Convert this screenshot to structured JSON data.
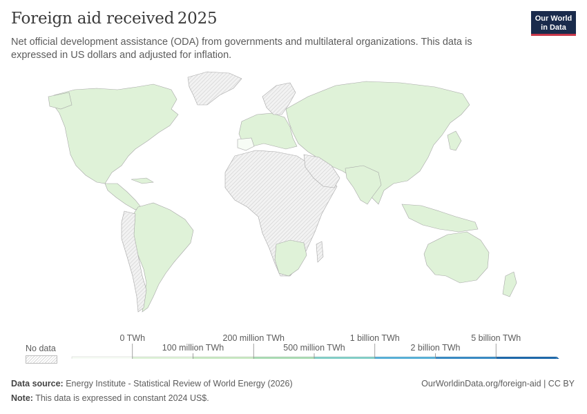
{
  "header": {
    "title": "Foreign aid received",
    "year": "2025",
    "subtitle": "Net official development assistance (ODA) from governments and multilateral organizations. This data is expressed in US dollars and adjusted for inflation.",
    "logo_line1": "Our World",
    "logo_line2": "in Data"
  },
  "legend": {
    "nodata_label": "No data",
    "bins": [
      {
        "label": "0 TWh",
        "color": "#f7fcf5"
      },
      {
        "label": "100 million TWh",
        "color": "#dcf1d6"
      },
      {
        "label": "200 million TWh",
        "color": "#c6e8c0"
      },
      {
        "label": "500 million TWh",
        "color": "#a6dab0"
      },
      {
        "label": "1 billion TWh",
        "color": "#7ccdc5"
      },
      {
        "label": "2 billion TWh",
        "color": "#4cacd6"
      },
      {
        "label": "5 billion TWh",
        "color": "#2b83c1"
      },
      {
        "label": "",
        "color": "#0e5ea6"
      }
    ]
  },
  "map": {
    "fill_color": "#dff2d8",
    "nodata_color": "#e9e9e9",
    "border_color": "#9a9a9a"
  },
  "footer": {
    "source_label": "Data source:",
    "source_text": "Energy Institute - Statistical Review of World Energy (2026)",
    "url": "OurWorldinData.org/foreign-aid | CC BY",
    "note_label": "Note:",
    "note_text": "This data is expressed in constant 2024 US$."
  }
}
